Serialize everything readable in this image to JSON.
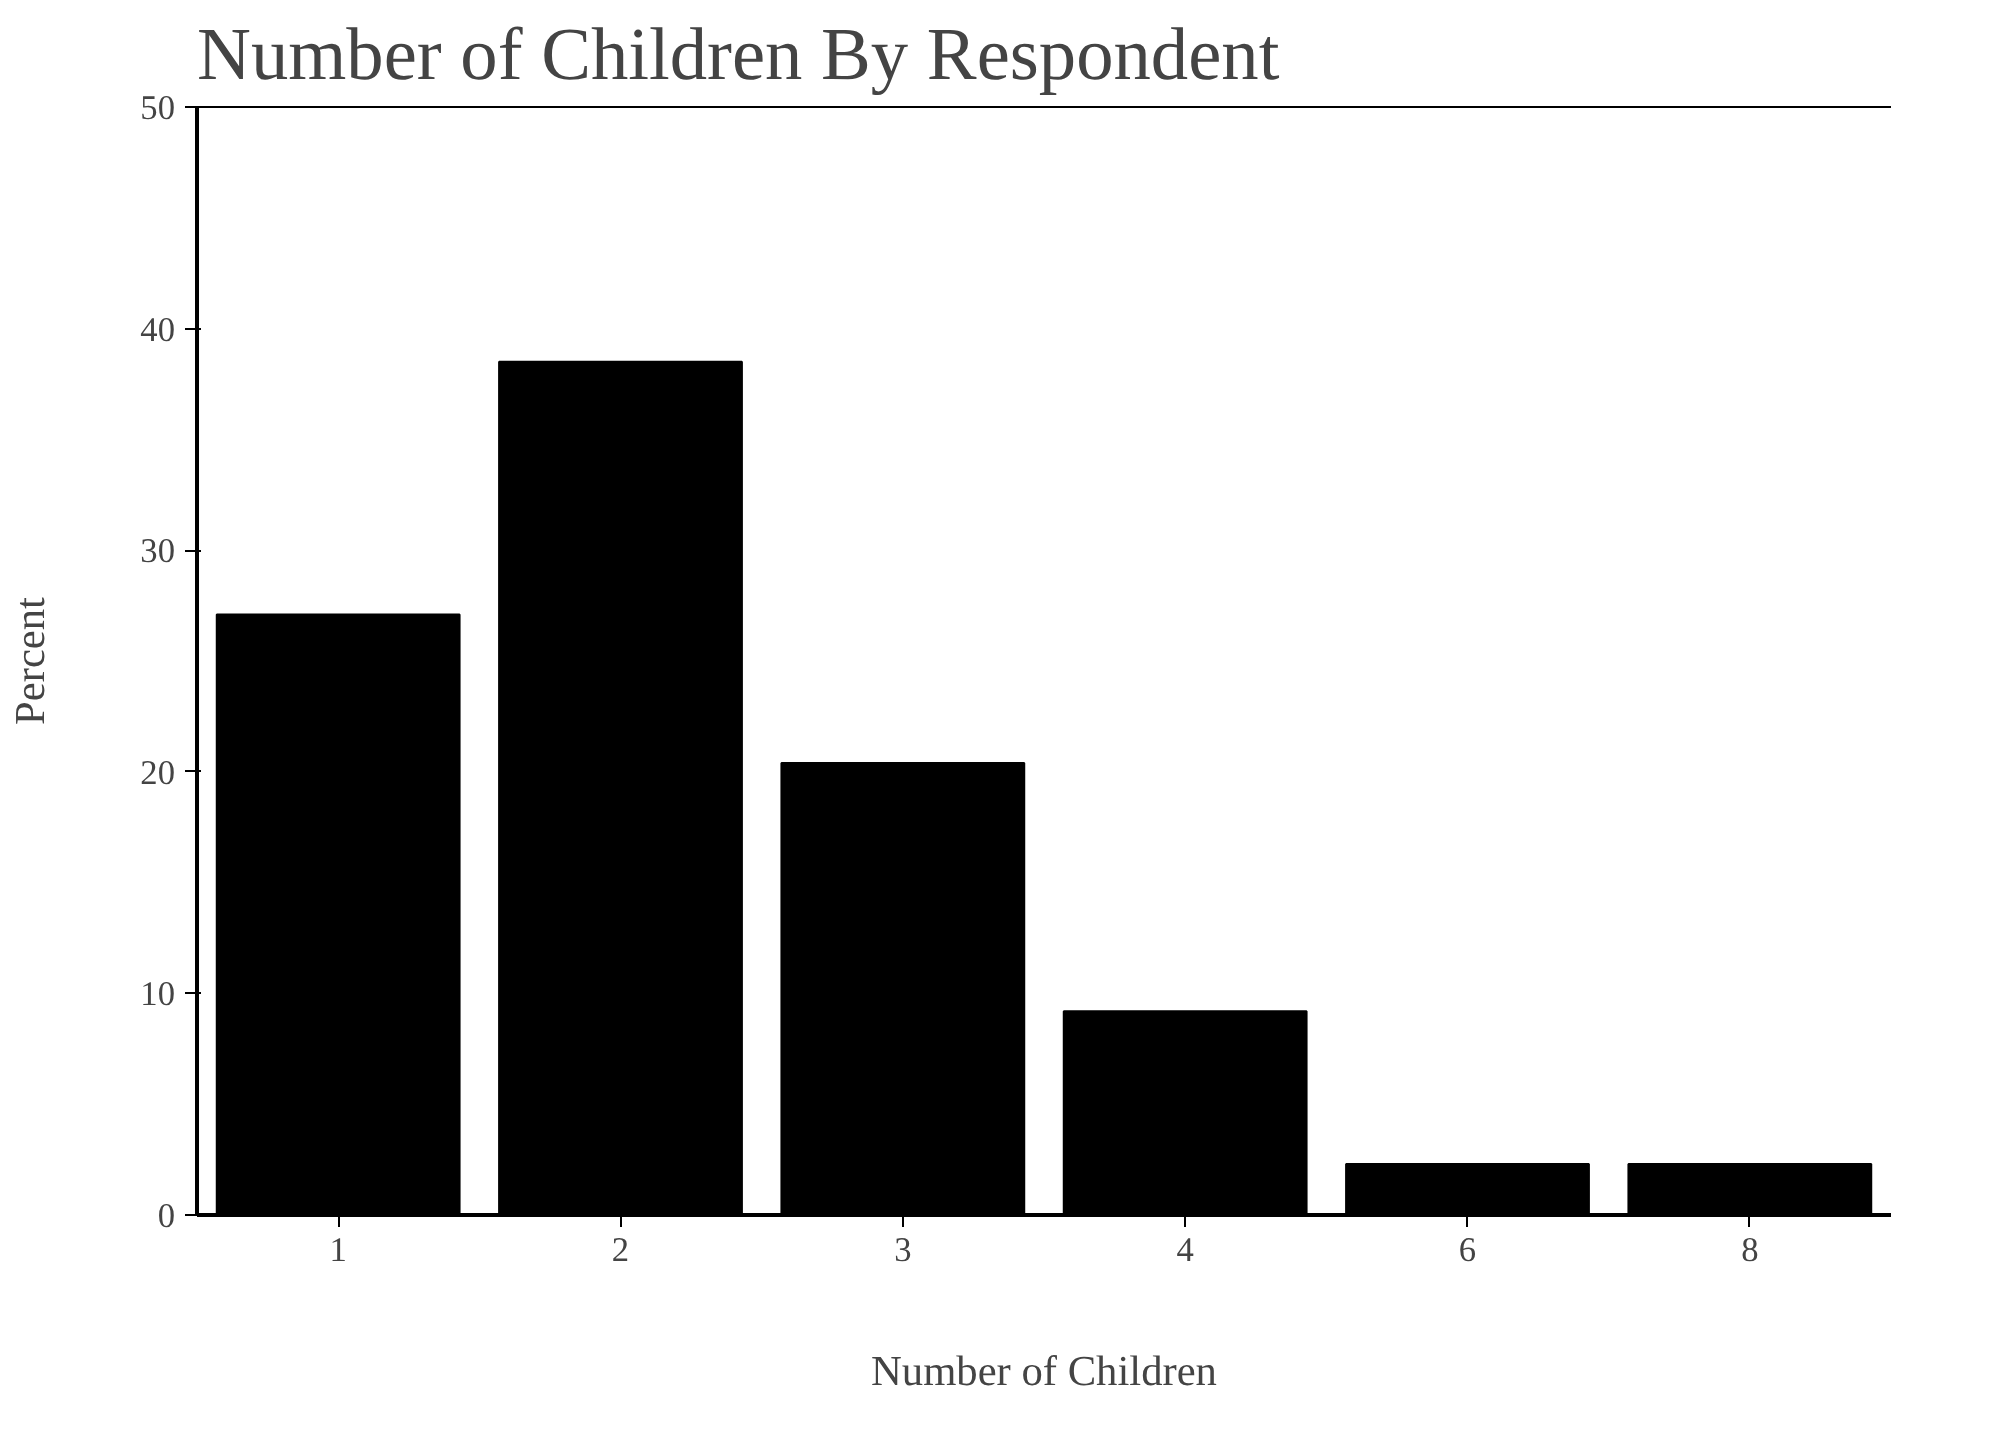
{
  "chart_data": {
    "type": "bar",
    "title": "Number of Children By Respondent",
    "xlabel": "Number of Children",
    "ylabel": "Percent",
    "categories": [
      "1",
      "2",
      "3",
      "4",
      "6",
      "8"
    ],
    "values": [
      27.1,
      38.5,
      20.4,
      9.2,
      2.3,
      2.3
    ],
    "color": "#000000",
    "ylim": [
      0,
      50
    ],
    "yticks": [
      0,
      10,
      20,
      30,
      40,
      50
    ],
    "grid": false
  }
}
